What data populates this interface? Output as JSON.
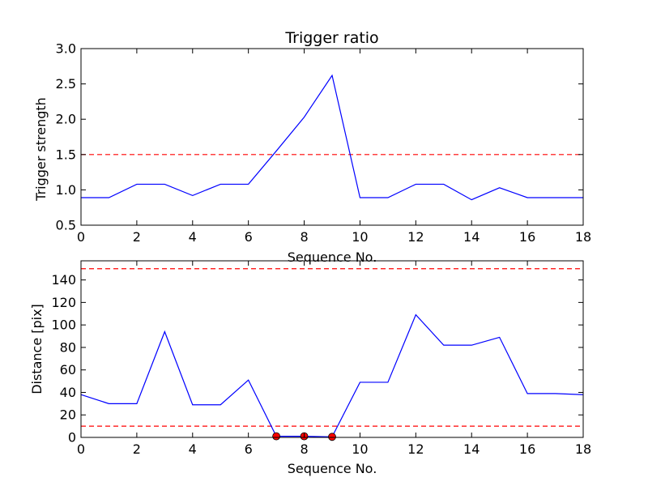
{
  "chart_data": [
    {
      "type": "line",
      "title": "Trigger ratio",
      "xlabel": "Sequence No.",
      "ylabel": "Trigger strength",
      "xlim": [
        0,
        18
      ],
      "ylim": [
        0.5,
        3.0
      ],
      "xticks": [
        "0",
        "2",
        "4",
        "6",
        "8",
        "10",
        "12",
        "14",
        "16",
        "18"
      ],
      "yticks": [
        "0.5",
        "1.0",
        "1.5",
        "2.0",
        "2.5",
        "3.0"
      ],
      "grid": false,
      "series": [
        {
          "color": "#0000ff",
          "style": "solid",
          "x": [
            0,
            1,
            2,
            3,
            4,
            5,
            6,
            7,
            8,
            9,
            10,
            11,
            12,
            13,
            14,
            15,
            16,
            17,
            18
          ],
          "y": [
            0.89,
            0.89,
            1.08,
            1.08,
            0.92,
            1.08,
            1.08,
            1.55,
            2.03,
            2.62,
            0.89,
            0.89,
            1.08,
            1.08,
            0.86,
            1.03,
            0.89,
            0.89,
            0.89
          ]
        }
      ],
      "hlines": [
        {
          "y": 1.5,
          "color": "#ff0000",
          "style": "dashed"
        }
      ]
    },
    {
      "type": "line",
      "title": "",
      "xlabel": "Sequence No.",
      "ylabel": "Distance [pix]",
      "xlim": [
        0,
        18
      ],
      "ylim": [
        0,
        157
      ],
      "xticks": [
        "0",
        "2",
        "4",
        "6",
        "8",
        "10",
        "12",
        "14",
        "16",
        "18"
      ],
      "yticks": [
        "0",
        "20",
        "40",
        "60",
        "80",
        "100",
        "120",
        "140"
      ],
      "grid": false,
      "series": [
        {
          "color": "#0000ff",
          "style": "solid",
          "x": [
            0,
            1,
            2,
            3,
            4,
            5,
            6,
            7,
            8,
            9,
            10,
            11,
            12,
            13,
            14,
            15,
            16,
            17,
            18
          ],
          "y": [
            38,
            30,
            30,
            94,
            29,
            29,
            51,
            1,
            1,
            0.5,
            49,
            49,
            109,
            82,
            82,
            89,
            39,
            39,
            38
          ]
        }
      ],
      "markers": [
        {
          "color": "#ff0000",
          "x": [
            7,
            8,
            9
          ],
          "y": [
            1,
            1,
            0.5
          ]
        }
      ],
      "hlines": [
        {
          "y": 150,
          "color": "#ff0000",
          "style": "dashed"
        },
        {
          "y": 10,
          "color": "#ff0000",
          "style": "dashed"
        }
      ]
    }
  ]
}
